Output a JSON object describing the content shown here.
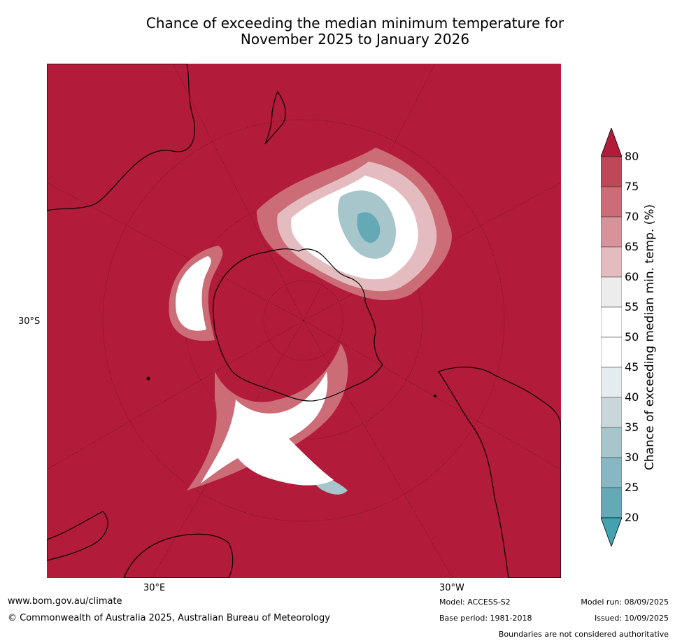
{
  "title": {
    "line1": "Chance of exceeding the median minimum temperature for",
    "line2": "November 2025 to January 2026"
  },
  "axis": {
    "lat_label": "30°S",
    "lon_left": "30°E",
    "lon_right": "30°W"
  },
  "colorbar": {
    "label": "Chance of exceeding median min. temp. (%)",
    "ticks": [
      "80",
      "75",
      "70",
      "65",
      "60",
      "55",
      "50",
      "45",
      "40",
      "35",
      "30",
      "25",
      "20"
    ],
    "colors": [
      "#b31b3a",
      "#bf4757",
      "#cb6c77",
      "#d79399",
      "#e4bcbf",
      "#ececec",
      "#ffffff",
      "#ffffff",
      "#e5ecef",
      "#c9d7da",
      "#a7c6cb",
      "#86b7c2",
      "#65a9b6",
      "#44a2b0"
    ]
  },
  "footer": {
    "url": "www.bom.gov.au/climate",
    "copyright": "© Commonwealth of Australia 2025, Australian Bureau of Meteorology",
    "model": "Model: ACCESS-S2",
    "base_period": "Base period: 1981-2018",
    "model_run": "Model run: 08/09/2025",
    "issued": "Issued: 10/09/2025",
    "disclaimer": "Boundaries are not considered authoritative"
  }
}
